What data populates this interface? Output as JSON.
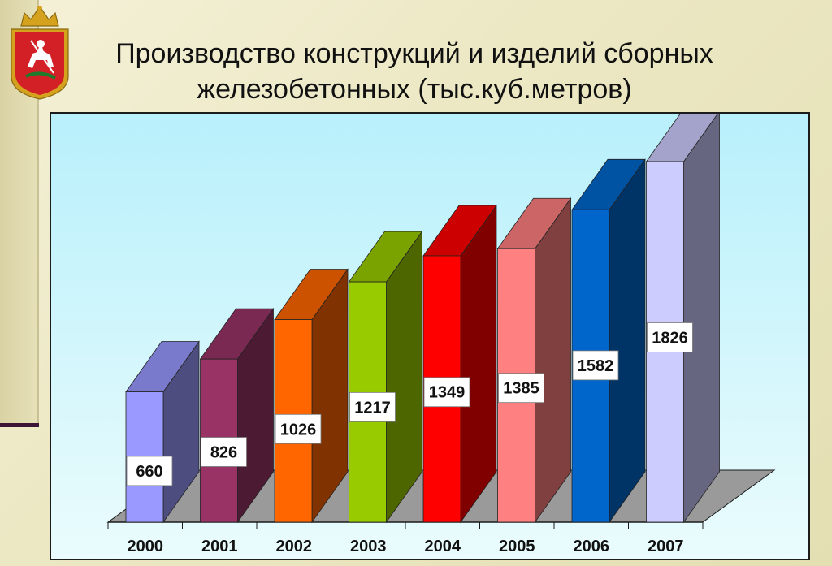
{
  "slide": {
    "title_line1": "Производство конструкций и изделий сборных",
    "title_line2": "железобетонных (тыс.куб.метров)"
  },
  "emblem": {
    "icon": "moscow-oblast-coat-of-arms-icon",
    "colors": {
      "shield": "#d32027",
      "border": "#d4a21c"
    }
  },
  "chart_data": {
    "type": "bar",
    "categories": [
      "2000",
      "2001",
      "2002",
      "2003",
      "2004",
      "2005",
      "2006",
      "2007"
    ],
    "values": [
      660,
      826,
      1026,
      1217,
      1349,
      1385,
      1582,
      1826
    ],
    "title": "",
    "xlabel": "",
    "ylabel": "",
    "ylim": [
      0,
      1900
    ],
    "grid": false,
    "legend": "none",
    "style": "3d-columns",
    "bar_colors": [
      "#9999ff",
      "#993366",
      "#ff6600",
      "#99cc00",
      "#ff0000",
      "#ff8080",
      "#0066cc",
      "#ccccff"
    ]
  }
}
